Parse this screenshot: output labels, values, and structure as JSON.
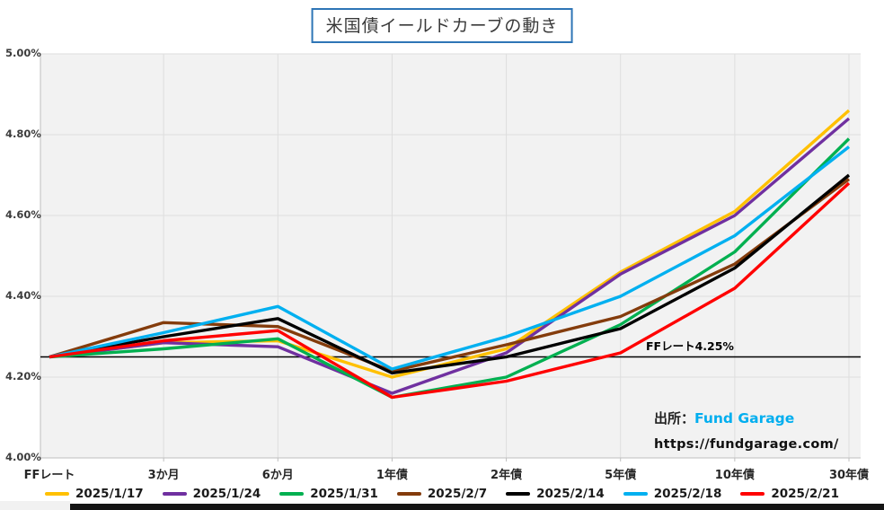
{
  "title": "米国債イールドカーブの動き",
  "chart_data": {
    "type": "line",
    "title": "米国債イールドカーブの動き",
    "categories": [
      "FFレート",
      "3か月",
      "6か月",
      "1年債",
      "2年債",
      "5年債",
      "10年債",
      "30年債"
    ],
    "y_ticks": [
      {
        "value": 5.0,
        "label": "5.00%"
      },
      {
        "value": 4.8,
        "label": "4.80%"
      },
      {
        "value": 4.6,
        "label": "4.60%"
      },
      {
        "value": 4.4,
        "label": "4.40%"
      },
      {
        "value": 4.2,
        "label": "4.20%"
      },
      {
        "value": 4.0,
        "label": "4.00%"
      }
    ],
    "ylim": [
      4.0,
      5.0
    ],
    "grid": true,
    "legend_position": "bottom",
    "series": [
      {
        "name": "2025/1/17",
        "color": "#FFC000",
        "values": [
          4.25,
          4.285,
          4.29,
          4.2,
          4.27,
          4.46,
          4.61,
          4.86
        ]
      },
      {
        "name": "2025/1/24",
        "color": "#7030A0",
        "values": [
          4.25,
          4.285,
          4.275,
          4.16,
          4.26,
          4.455,
          4.6,
          4.84
        ]
      },
      {
        "name": "2025/1/31",
        "color": "#00B050",
        "values": [
          4.25,
          4.27,
          4.295,
          4.15,
          4.2,
          4.33,
          4.51,
          4.79
        ]
      },
      {
        "name": "2025/2/7",
        "color": "#843C0C",
        "values": [
          4.25,
          4.335,
          4.325,
          4.215,
          4.28,
          4.35,
          4.48,
          4.69
        ]
      },
      {
        "name": "2025/2/14",
        "color": "#000000",
        "values": [
          4.25,
          4.3,
          4.345,
          4.21,
          4.25,
          4.32,
          4.47,
          4.7
        ]
      },
      {
        "name": "2025/2/18",
        "color": "#00B0F0",
        "values": [
          4.25,
          4.31,
          4.375,
          4.22,
          4.3,
          4.4,
          4.55,
          4.77
        ]
      },
      {
        "name": "2025/2/21",
        "color": "#FF0000",
        "values": [
          4.25,
          4.29,
          4.315,
          4.15,
          4.19,
          4.26,
          4.42,
          4.68
        ]
      }
    ],
    "reference_line": {
      "value": 4.25,
      "label": "FFレート4.25%",
      "color": "#000000"
    },
    "source": {
      "prefix": "出所：",
      "name": "Fund Garage",
      "url": "https://fundgarage.com/"
    }
  },
  "colors": {
    "title_border": "#2E75B6",
    "plot_background": "#F2F2F2",
    "gridline": "#DEDEDE",
    "axis": "#BFBFBF",
    "source_name": "#00AEEF"
  }
}
